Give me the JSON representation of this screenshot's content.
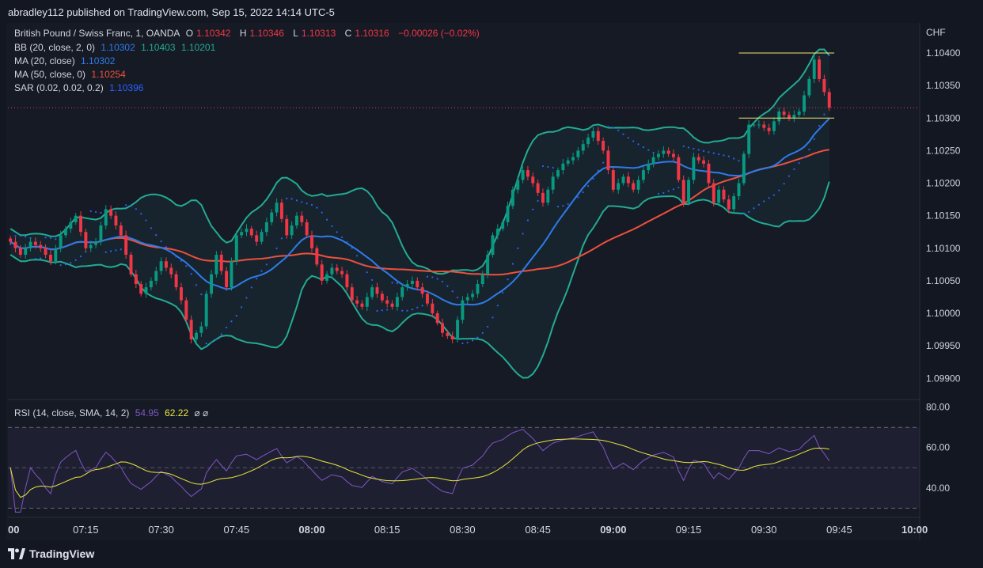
{
  "header": {
    "published": "abradley112 published on TradingView.com, Sep 15, 2022 14:14 UTC-5"
  },
  "legend": {
    "symbol": "British Pound / Swiss Franc, 1, OANDA",
    "o_label": "O",
    "o": "1.10342",
    "h_label": "H",
    "h": "1.10346",
    "l_label": "L",
    "l": "1.10313",
    "c_label": "C",
    "c": "1.10316",
    "change": "−0.00026 (−0.02%)",
    "bb_label": "BB (20, close, 2, 0)",
    "bb_basis": "1.10302",
    "bb_upper": "1.10403",
    "bb_lower": "1.10201",
    "ma20_label": "MA (20, close)",
    "ma20": "1.10302",
    "ma50_label": "MA (50, close, 0)",
    "ma50": "1.10254",
    "sar_label": "SAR (0.02, 0.02, 0.2)",
    "sar": "1.10396",
    "rsi_label": "RSI (14, close, SMA, 14, 2)",
    "rsi": "54.95",
    "rsi_ma": "62.22",
    "rsi_extra": "⌀  ⌀"
  },
  "colors": {
    "up": "#089981",
    "down": "#f23645",
    "bb": "#22ab94",
    "ma20": "#2962ff",
    "ma20_line": "#2f7be8",
    "ma50": "#f0503c",
    "sar": "#2962ff",
    "rsi": "#7e57c2",
    "rsi_ma": "#e8e83c",
    "hline": "#f5e56b"
  },
  "footer": {
    "brand": "TradingView"
  },
  "chart_data": [
    {
      "type": "candlestick",
      "title": "British Pound / Swiss Franc, 1, OANDA",
      "currency": "CHF",
      "y_ticks": [
        "1.10400",
        "1.10350",
        "1.10300",
        "1.10250",
        "1.10200",
        "1.10150",
        "1.10100",
        "1.10050",
        "1.10000",
        "1.09950",
        "1.09900"
      ],
      "ylim": [
        1.0987,
        1.10445
      ],
      "x_ticks": [
        {
          "label": "00",
          "bold": true
        },
        {
          "label": "07:15",
          "bold": false
        },
        {
          "label": "07:30",
          "bold": false
        },
        {
          "label": "07:45",
          "bold": false
        },
        {
          "label": "08:00",
          "bold": true
        },
        {
          "label": "08:15",
          "bold": false
        },
        {
          "label": "08:30",
          "bold": false
        },
        {
          "label": "08:45",
          "bold": false
        },
        {
          "label": "09:00",
          "bold": true
        },
        {
          "label": "09:15",
          "bold": false
        },
        {
          "label": "09:30",
          "bold": false
        },
        {
          "label": "09:45",
          "bold": false
        },
        {
          "label": "10:00",
          "bold": true
        }
      ],
      "time_range_minutes": [
        -0.5,
        181
      ],
      "close_price_line": 1.10316,
      "horizontal_lines": [
        {
          "y": 1.104,
          "from_min": 145,
          "to_min": 164
        },
        {
          "y": 1.103,
          "from_min": 145,
          "to_min": 164
        }
      ],
      "close_anchors": [
        [
          0,
          1.1011
        ],
        [
          2,
          1.1009
        ],
        [
          4,
          1.1011
        ],
        [
          6,
          1.101
        ],
        [
          8,
          1.1008
        ],
        [
          10,
          1.1012
        ],
        [
          11,
          1.1013
        ],
        [
          13,
          1.1015
        ],
        [
          15,
          1.101
        ],
        [
          17,
          1.1011
        ],
        [
          19,
          1.1016
        ],
        [
          20,
          1.1015
        ],
        [
          22,
          1.1012
        ],
        [
          24,
          1.1006
        ],
        [
          26,
          1.1003
        ],
        [
          28,
          1.1005
        ],
        [
          30,
          1.1008
        ],
        [
          32,
          1.1006
        ],
        [
          34,
          1.1002
        ],
        [
          36,
          1.0996
        ],
        [
          38,
          1.0998
        ],
        [
          39,
          1.1003
        ],
        [
          41,
          1.1009
        ],
        [
          43,
          1.1004
        ],
        [
          45,
          1.1012
        ],
        [
          47,
          1.1013
        ],
        [
          49,
          1.1011
        ],
        [
          51,
          1.1014
        ],
        [
          53,
          1.1017
        ],
        [
          55,
          1.1012
        ],
        [
          57,
          1.1015
        ],
        [
          58,
          1.1014
        ],
        [
          60,
          1.101
        ],
        [
          62,
          1.1005
        ],
        [
          64,
          1.1007
        ],
        [
          66,
          1.1006
        ],
        [
          68,
          1.1002
        ],
        [
          70,
          1.1001
        ],
        [
          72,
          1.1004
        ],
        [
          74,
          1.1002
        ],
        [
          76,
          1.1001
        ],
        [
          78,
          1.1004
        ],
        [
          80,
          1.1005
        ],
        [
          82,
          1.1003
        ],
        [
          84,
          1.1
        ],
        [
          86,
          1.0997
        ],
        [
          88,
          1.0996
        ],
        [
          90,
          1.1002
        ],
        [
          92,
          1.1003
        ],
        [
          94,
          1.1006
        ],
        [
          96,
          1.1012
        ],
        [
          98,
          1.1014
        ],
        [
          100,
          1.1019
        ],
        [
          102,
          1.1022
        ],
        [
          104,
          1.102
        ],
        [
          106,
          1.1017
        ],
        [
          108,
          1.1021
        ],
        [
          110,
          1.1023
        ],
        [
          112,
          1.1024
        ],
        [
          114,
          1.1026
        ],
        [
          116,
          1.1028
        ],
        [
          118,
          1.1025
        ],
        [
          120,
          1.1019
        ],
        [
          122,
          1.1021
        ],
        [
          124,
          1.1019
        ],
        [
          126,
          1.1022
        ],
        [
          128,
          1.1024
        ],
        [
          130,
          1.1025
        ],
        [
          132,
          1.1024
        ],
        [
          134,
          1.1017
        ],
        [
          136,
          1.1024
        ],
        [
          138,
          1.1023
        ],
        [
          140,
          1.1017
        ],
        [
          141,
          1.1019
        ],
        [
          143,
          1.1016
        ],
        [
          145,
          1.102
        ],
        [
          147,
          1.1029
        ],
        [
          149,
          1.1029
        ],
        [
          151,
          1.1028
        ],
        [
          153,
          1.1031
        ],
        [
          155,
          1.103
        ],
        [
          157,
          1.1031
        ],
        [
          159,
          1.1036
        ],
        [
          160,
          1.1039
        ],
        [
          161,
          1.1036
        ],
        [
          162,
          1.1034
        ],
        [
          163,
          1.10316
        ]
      ],
      "series": [
        {
          "name": "BB (20, close, 2, 0)"
        },
        {
          "name": "MA (20, close)"
        },
        {
          "name": "MA (50, close, 0)"
        },
        {
          "name": "SAR (0.02, 0.02, 0.2)"
        }
      ]
    },
    {
      "type": "line",
      "title": "RSI (14, close, SMA, 14, 2)",
      "y_ticks": [
        "80.00",
        "60.00",
        "40.00"
      ],
      "ylim": [
        27,
        83
      ],
      "bands": [
        70,
        50,
        30
      ],
      "series": [
        {
          "name": "RSI",
          "derived_from": "close"
        },
        {
          "name": "RSI-based MA",
          "derived_from": "RSI"
        }
      ]
    }
  ]
}
